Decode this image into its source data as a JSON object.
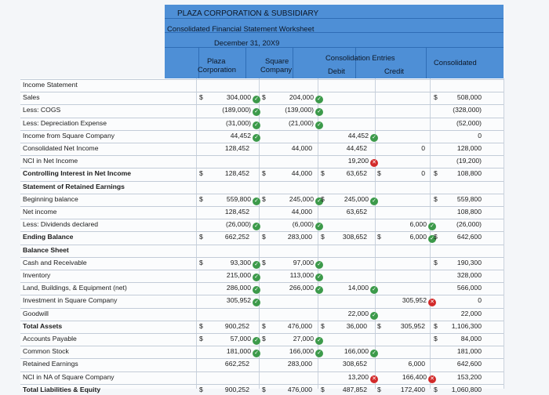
{
  "header": {
    "company": "PLAZA CORPORATION & SUBSIDIARY",
    "title": "Consolidated Financial Statement Worksheet",
    "date": "December 31, 20X9",
    "col_plaza_1": "Plaza",
    "col_plaza_2": "Corporation",
    "col_square_1": "Square",
    "col_square_2": "Company",
    "col_entries": "Consolidation Entries",
    "col_debit": "Debit",
    "col_credit": "Credit",
    "col_consolidated": "Consolidated"
  },
  "dollar": "$",
  "rows": [
    {
      "label": "Income Statement",
      "bold": false
    },
    {
      "label": "Sales",
      "plaza": "304,000",
      "plaza_ok": true,
      "square": "204,000",
      "square_ok": true,
      "cons": "508,000",
      "d_plaza": true,
      "d_square": true,
      "d_cons": true
    },
    {
      "label": "Less: COGS",
      "plaza": "(189,000)",
      "plaza_ok": true,
      "square": "(139,000)",
      "square_ok": true,
      "cons": "(328,000)"
    },
    {
      "label": "Less: Depreciation Expense",
      "plaza": "(31,000)",
      "plaza_ok": true,
      "square": "(21,000)",
      "square_ok": true,
      "cons": "(52,000)"
    },
    {
      "label": "Income from Square Company",
      "plaza": "44,452",
      "plaza_ok": true,
      "debit": "44,452",
      "debit_ok": true,
      "cons": "0"
    },
    {
      "label": "Consolidated Net Income",
      "plaza": "128,452",
      "square": "44,000",
      "debit": "44,452",
      "credit": "0",
      "cons": "128,000"
    },
    {
      "label": "NCI in Net Income",
      "debit": "19,200",
      "debit_bad": true,
      "cons": "(19,200)"
    },
    {
      "label": "Controlling Interest in Net Income",
      "bold": true,
      "plaza": "128,452",
      "square": "44,000",
      "debit": "63,652",
      "credit": "0",
      "cons": "108,800",
      "d_plaza": true,
      "d_square": true,
      "d_debit": true,
      "d_credit": true,
      "d_cons": true
    },
    {
      "label": "Statement of Retained Earnings",
      "bold": true
    },
    {
      "label": "Beginning balance",
      "plaza": "559,800",
      "plaza_ok": true,
      "square": "245,000",
      "square_ok": true,
      "debit": "245,000",
      "debit_ok": true,
      "cons": "559,800",
      "d_plaza": true,
      "d_square": true,
      "d_debit": true,
      "d_cons": true
    },
    {
      "label": "Net income",
      "plaza": "128,452",
      "square": "44,000",
      "debit": "63,652",
      "cons": "108,800"
    },
    {
      "label": "Less: Dividends declared",
      "plaza": "(26,000)",
      "plaza_ok": true,
      "square": "(6,000)",
      "square_ok": true,
      "credit": "6,000",
      "credit_ok": true,
      "cons": "(26,000)"
    },
    {
      "label": "Ending Balance",
      "bold": true,
      "plaza": "662,252",
      "square": "283,000",
      "debit": "308,652",
      "credit": "6,000",
      "credit_ok": true,
      "cons": "642,600",
      "d_plaza": true,
      "d_square": true,
      "d_debit": true,
      "d_credit": true,
      "d_cons": true
    },
    {
      "label": "Balance Sheet",
      "bold": true
    },
    {
      "label": "Cash and Receivable",
      "plaza": "93,300",
      "plaza_ok": true,
      "square": "97,000",
      "square_ok": true,
      "cons": "190,300",
      "d_plaza": true,
      "d_square": true,
      "d_cons": true
    },
    {
      "label": "Inventory",
      "plaza": "215,000",
      "plaza_ok": true,
      "square": "113,000",
      "square_ok": true,
      "cons": "328,000"
    },
    {
      "label": "Land, Buildings, & Equipment (net)",
      "plaza": "286,000",
      "plaza_ok": true,
      "square": "266,000",
      "square_ok": true,
      "debit": "14,000",
      "debit_ok": true,
      "cons": "566,000"
    },
    {
      "label": "Investment in Square Company",
      "plaza": "305,952",
      "plaza_ok": true,
      "credit": "305,952",
      "credit_bad": true,
      "cons": "0"
    },
    {
      "label": "Goodwill",
      "debit": "22,000",
      "debit_ok": true,
      "cons": "22,000"
    },
    {
      "label": "Total Assets",
      "bold": true,
      "plaza": "900,252",
      "square": "476,000",
      "debit": "36,000",
      "credit": "305,952",
      "cons": "1,106,300",
      "d_plaza": true,
      "d_square": true,
      "d_debit": true,
      "d_credit": true,
      "d_cons": true
    },
    {
      "label": "Accounts Payable",
      "plaza": "57,000",
      "plaza_ok": true,
      "square": "27,000",
      "square_ok": true,
      "cons": "84,000",
      "d_plaza": true,
      "d_square": true,
      "d_cons": true
    },
    {
      "label": "Common Stock",
      "plaza": "181,000",
      "plaza_ok": true,
      "square": "166,000",
      "square_ok": true,
      "debit": "166,000",
      "debit_ok": true,
      "cons": "181,000"
    },
    {
      "label": "Retained Earnings",
      "plaza": "662,252",
      "square": "283,000",
      "debit": "308,652",
      "credit": "6,000",
      "cons": "642,600"
    },
    {
      "label": "NCI in NA of Square Company",
      "debit": "13,200",
      "debit_bad": true,
      "credit": "166,400",
      "credit_bad": true,
      "cons": "153,200"
    },
    {
      "label": "Total Liabilities & Equity",
      "bold": true,
      "plaza": "900,252",
      "square": "476,000",
      "debit": "487,852",
      "credit": "172,400",
      "cons": "1,060,800",
      "d_plaza": true,
      "d_square": true,
      "d_debit": true,
      "d_credit": true,
      "d_cons": true
    }
  ]
}
